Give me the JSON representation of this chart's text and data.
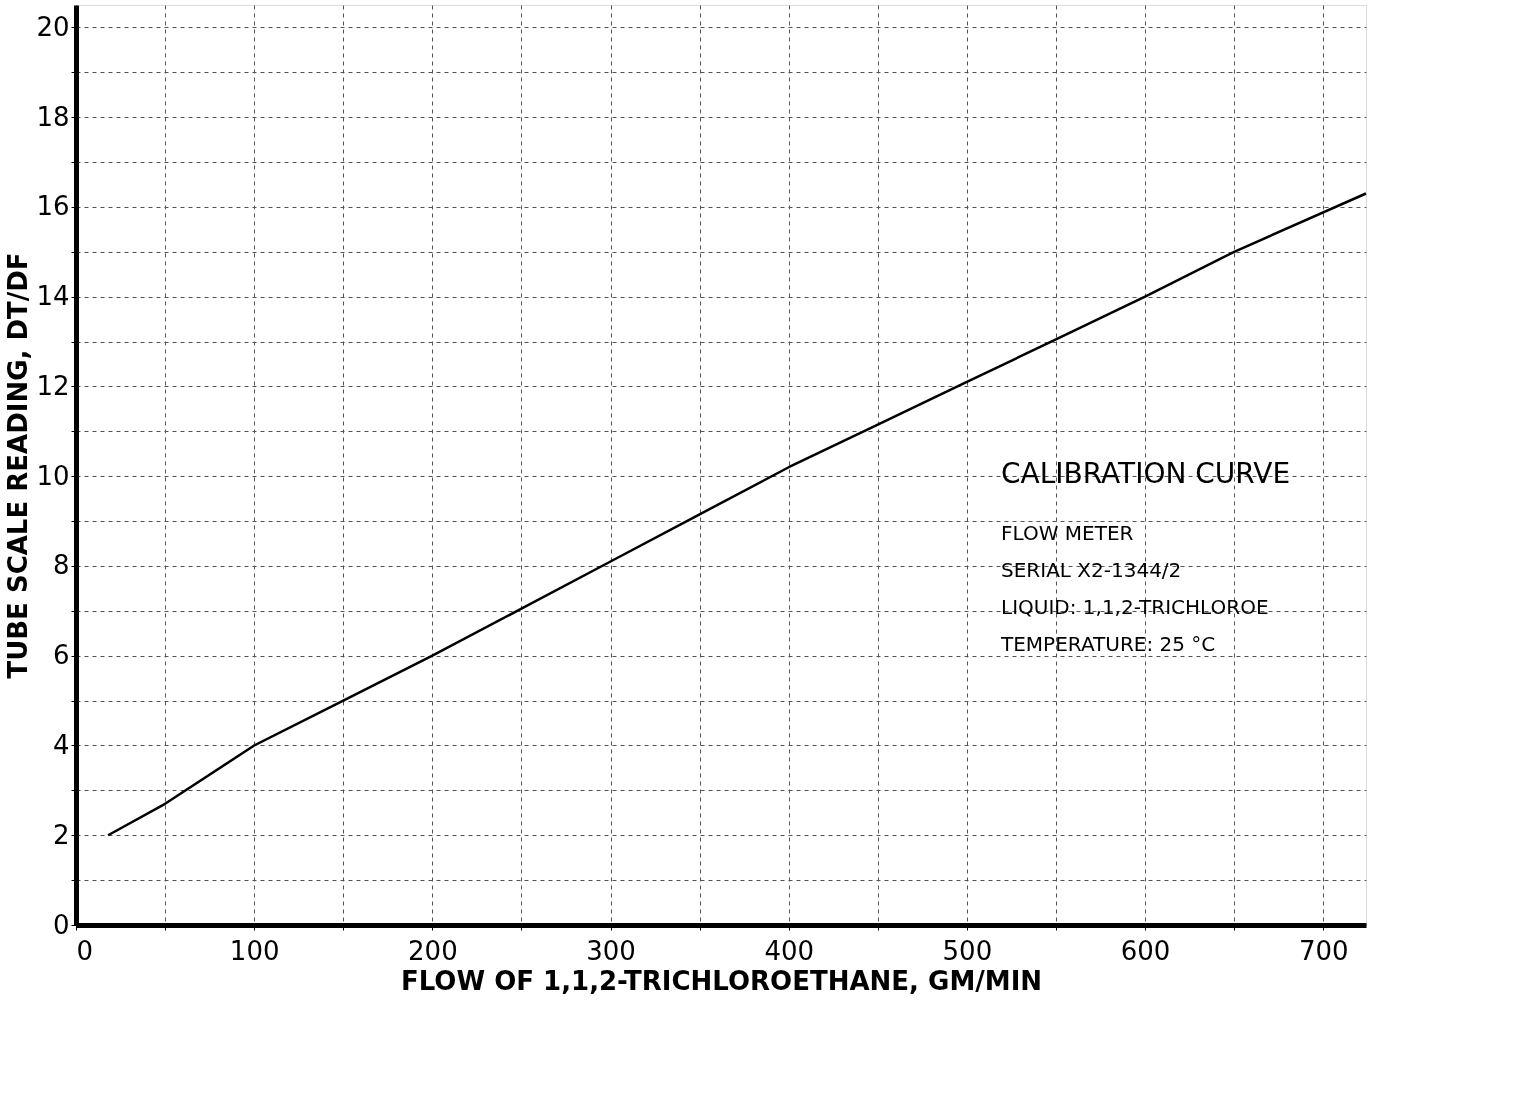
{
  "chart_data": {
    "type": "line",
    "xlabel": "FLOW OF 1,1,2-TRICHLOROETHANE, GM/MIN",
    "ylabel": "TUBE SCALE READING, DT/DF",
    "x": [
      18,
      50,
      100,
      150,
      200,
      250,
      300,
      350,
      400,
      450,
      500,
      550,
      600,
      650,
      724
    ],
    "series": [
      {
        "color": "#000000",
        "values": [
          2.0,
          2.7,
          4.0,
          5.0,
          6.0,
          7.05,
          8.1,
          9.15,
          10.2,
          11.15,
          12.1,
          13.05,
          14.0,
          15.0,
          16.3
        ]
      }
    ],
    "xlim": [
      0,
      724
    ],
    "ylim": [
      0,
      20.5
    ],
    "xticks": [
      0,
      {
        "value": 50,
        "label": null
      },
      100,
      {
        "value": 150,
        "label": null
      },
      200,
      {
        "value": 250,
        "label": null
      },
      300,
      {
        "value": 350,
        "label": null
      },
      400,
      {
        "value": 450,
        "label": null
      },
      500,
      {
        "value": 550,
        "label": null
      },
      600,
      {
        "value": 650,
        "label": null
      },
      700
    ],
    "yticks": [
      0,
      {
        "value": 1,
        "label": null
      },
      2,
      {
        "value": 3,
        "label": null
      },
      4,
      {
        "value": 5,
        "label": null
      },
      6,
      {
        "value": 7,
        "label": null
      },
      8,
      {
        "value": 9,
        "label": null
      },
      10,
      {
        "value": 11,
        "label": null
      },
      12,
      {
        "value": 13,
        "label": null
      },
      14,
      {
        "value": 15,
        "label": null
      },
      16,
      {
        "value": 17,
        "label": null
      },
      18,
      {
        "value": 19,
        "label": null
      },
      20
    ],
    "grid": true,
    "marker": "none",
    "line_style": "solid",
    "annotations": [
      "CALIBRATION CURVE",
      "FLOW METER",
      "SERIAL X2-1344/2",
      "LIQUID: 1,1,2-TRICHLOROE",
      "TEMPERATURE: 25 °C"
    ]
  }
}
